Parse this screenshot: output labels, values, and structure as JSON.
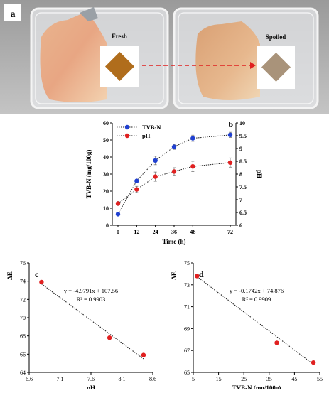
{
  "panel_a": {
    "letter": "a",
    "fresh_label": "Fresh",
    "spoiled_label": "Spoiled",
    "colors": {
      "fresh_sensor": "#b06d1c",
      "spoiled_sensor": "#a9937a",
      "arrow": "#e02020"
    }
  },
  "chart_data": [
    {
      "id": "b",
      "type": "line",
      "panel_letter": "b",
      "xlabel": "Time (h)",
      "ylabel": "TVB-N (mg/100g)",
      "y2label": "pH",
      "x": [
        0,
        12,
        24,
        36,
        48,
        72
      ],
      "x_ticks": [
        "0",
        "12",
        "24",
        "36",
        "48",
        "72"
      ],
      "ylim": [
        0,
        60
      ],
      "y_ticks": [
        "0",
        "10",
        "20",
        "30",
        "40",
        "50",
        "60"
      ],
      "y2lim": [
        6,
        10
      ],
      "y2_ticks": [
        "6",
        "6.5",
        "7",
        "7.5",
        "8",
        "8.5",
        "9",
        "9.5",
        "10"
      ],
      "legend_position": "top-left",
      "series": [
        {
          "name": "TVB-N",
          "axis": "left",
          "color": "#2040d0",
          "values": [
            6.5,
            26,
            38,
            46,
            51,
            53
          ],
          "errors": [
            0.8,
            0.8,
            2.5,
            1.5,
            1.8,
            1.5
          ]
        },
        {
          "name": "pH",
          "axis": "right",
          "color": "#e02020",
          "values": [
            6.85,
            7.4,
            7.9,
            8.1,
            8.3,
            8.45
          ],
          "errors": [
            0.08,
            0.12,
            0.18,
            0.15,
            0.2,
            0.18
          ]
        }
      ]
    },
    {
      "id": "c",
      "type": "scatter",
      "panel_letter": "c",
      "xlabel": "pH",
      "ylabel": "ΔE",
      "xlim": [
        6.6,
        8.6
      ],
      "x_ticks": [
        "6.6",
        "7.1",
        "7.6",
        "8.1",
        "8.6"
      ],
      "ylim": [
        64,
        76
      ],
      "y_ticks": [
        "64",
        "66",
        "68",
        "70",
        "72",
        "74",
        "76"
      ],
      "points": [
        {
          "x": 6.8,
          "y": 73.9
        },
        {
          "x": 7.9,
          "y": 67.8
        },
        {
          "x": 8.45,
          "y": 65.9
        }
      ],
      "trendline": {
        "slope": -4.9791,
        "intercept": 107.56
      },
      "equation": "y = -4.9791x + 107.56",
      "r2": "R² = 0.9903",
      "point_color": "#e02020"
    },
    {
      "id": "d",
      "type": "scatter",
      "panel_letter": "d",
      "xlabel": "TVB-N (mg/100g)",
      "ylabel": "ΔE",
      "xlim": [
        5,
        55
      ],
      "x_ticks": [
        "5",
        "15",
        "25",
        "35",
        "45",
        "55"
      ],
      "ylim": [
        65,
        75
      ],
      "y_ticks": [
        "65",
        "67",
        "69",
        "71",
        "73",
        "75"
      ],
      "points": [
        {
          "x": 6.5,
          "y": 73.8
        },
        {
          "x": 38,
          "y": 67.7
        },
        {
          "x": 52.5,
          "y": 65.9
        }
      ],
      "trendline": {
        "slope": -0.1742,
        "intercept": 74.876
      },
      "equation": "y = -0.1742x + 74.876",
      "r2": "R² = 0.9909",
      "point_color": "#e02020"
    }
  ]
}
